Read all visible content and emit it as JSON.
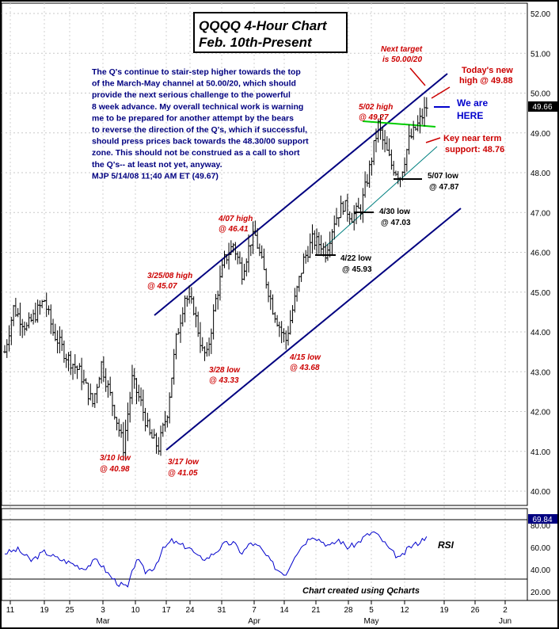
{
  "chart_data": [
    {
      "type": "candlestick",
      "title": "QQQQ 4-Hour Chart",
      "subtitle": "Feb. 10th-Present",
      "ylim": [
        39.5,
        52.2
      ],
      "y_ticks": [
        "52.00",
        "51.00",
        "50.00",
        "49.00",
        "48.00",
        "47.00",
        "46.00",
        "45.00",
        "44.00",
        "43.00",
        "42.00",
        "41.00",
        "40.00"
      ],
      "last_price_label": "49.66",
      "last_price": 49.66,
      "x_ticks": [
        "11",
        "19",
        "25",
        "3",
        "10",
        "17",
        "24",
        "31",
        "7",
        "14",
        "21",
        "28",
        "5",
        "12",
        "19",
        "26",
        "2"
      ],
      "month_labels": [
        "Mar",
        "Apr",
        "May",
        "Jun"
      ],
      "grid": true,
      "path_keypoints": [
        {
          "t": 0,
          "price": 43.5
        },
        {
          "t": 2,
          "price": 44.6
        },
        {
          "t": 5,
          "price": 44.1
        },
        {
          "t": 9,
          "price": 44.8
        },
        {
          "t": 11,
          "price": 44.0
        },
        {
          "t": 14,
          "price": 43.4
        },
        {
          "t": 17,
          "price": 43.0
        },
        {
          "t": 20,
          "price": 42.2
        },
        {
          "t": 22,
          "price": 43.2
        },
        {
          "t": 25,
          "price": 42.0
        },
        {
          "t": 27,
          "price": 41.1
        },
        {
          "t": 29,
          "price": 42.8
        },
        {
          "t": 31,
          "price": 42.2
        },
        {
          "t": 33,
          "price": 41.4
        },
        {
          "t": 35,
          "price": 41.1
        },
        {
          "t": 37,
          "price": 42.0
        },
        {
          "t": 39,
          "price": 43.8
        },
        {
          "t": 41,
          "price": 44.9
        },
        {
          "t": 43,
          "price": 44.6
        },
        {
          "t": 45,
          "price": 43.5
        },
        {
          "t": 46,
          "price": 43.4
        },
        {
          "t": 48,
          "price": 44.8
        },
        {
          "t": 50,
          "price": 45.8
        },
        {
          "t": 52,
          "price": 46.2
        },
        {
          "t": 54,
          "price": 45.5
        },
        {
          "t": 56,
          "price": 46.3
        },
        {
          "t": 57,
          "price": 46.4
        },
        {
          "t": 59,
          "price": 45.5
        },
        {
          "t": 61,
          "price": 44.6
        },
        {
          "t": 63,
          "price": 44.0
        },
        {
          "t": 64,
          "price": 43.8
        },
        {
          "t": 66,
          "price": 44.8
        },
        {
          "t": 68,
          "price": 45.8
        },
        {
          "t": 70,
          "price": 46.3
        },
        {
          "t": 72,
          "price": 46.2
        },
        {
          "t": 73,
          "price": 46.0
        },
        {
          "t": 75,
          "price": 46.8
        },
        {
          "t": 77,
          "price": 47.2
        },
        {
          "t": 79,
          "price": 46.9
        },
        {
          "t": 81,
          "price": 47.1
        },
        {
          "t": 83,
          "price": 48.1
        },
        {
          "t": 85,
          "price": 49.2
        },
        {
          "t": 86,
          "price": 48.8
        },
        {
          "t": 88,
          "price": 48.2
        },
        {
          "t": 90,
          "price": 47.9
        },
        {
          "t": 92,
          "price": 48.8
        },
        {
          "t": 94,
          "price": 49.2
        },
        {
          "t": 96,
          "price": 49.66
        }
      ],
      "rsi": {
        "label": "RSI",
        "value_label": "69.84",
        "value": 69.84,
        "ylim": [
          15,
          90
        ],
        "y_ticks": [
          "80.00",
          "60.00",
          "40.00",
          "20.00"
        ],
        "levels": [
          70,
          30
        ],
        "keypoints": [
          {
            "t": 0,
            "v": 55
          },
          {
            "t": 3,
            "v": 58
          },
          {
            "t": 6,
            "v": 48
          },
          {
            "t": 9,
            "v": 56
          },
          {
            "t": 12,
            "v": 50
          },
          {
            "t": 15,
            "v": 46
          },
          {
            "t": 18,
            "v": 41
          },
          {
            "t": 21,
            "v": 49
          },
          {
            "t": 24,
            "v": 34
          },
          {
            "t": 26,
            "v": 27
          },
          {
            "t": 28,
            "v": 24
          },
          {
            "t": 30,
            "v": 50
          },
          {
            "t": 32,
            "v": 38
          },
          {
            "t": 34,
            "v": 42
          },
          {
            "t": 36,
            "v": 58
          },
          {
            "t": 38,
            "v": 66
          },
          {
            "t": 40,
            "v": 62
          },
          {
            "t": 42,
            "v": 60
          },
          {
            "t": 44,
            "v": 51
          },
          {
            "t": 46,
            "v": 50
          },
          {
            "t": 48,
            "v": 56
          },
          {
            "t": 50,
            "v": 63
          },
          {
            "t": 52,
            "v": 64
          },
          {
            "t": 54,
            "v": 55
          },
          {
            "t": 56,
            "v": 64
          },
          {
            "t": 58,
            "v": 60
          },
          {
            "t": 60,
            "v": 50
          },
          {
            "t": 62,
            "v": 40
          },
          {
            "t": 64,
            "v": 36
          },
          {
            "t": 66,
            "v": 53
          },
          {
            "t": 68,
            "v": 63
          },
          {
            "t": 70,
            "v": 71
          },
          {
            "t": 72,
            "v": 66
          },
          {
            "t": 74,
            "v": 61
          },
          {
            "t": 76,
            "v": 67
          },
          {
            "t": 78,
            "v": 60
          },
          {
            "t": 80,
            "v": 63
          },
          {
            "t": 82,
            "v": 70
          },
          {
            "t": 84,
            "v": 74
          },
          {
            "t": 86,
            "v": 66
          },
          {
            "t": 88,
            "v": 56
          },
          {
            "t": 90,
            "v": 50
          },
          {
            "t": 92,
            "v": 60
          },
          {
            "t": 94,
            "v": 64
          },
          {
            "t": 96,
            "v": 69.84
          }
        ]
      }
    }
  ],
  "commentary": [
    "The Q's continue to stair-step higher towards the top",
    "of the March-May channel at 50.00/20, which should",
    "provide the next serious challenge to the powerful",
    "8 week advance.  My overall technical work is warning",
    "me to be prepared for another attempt by the bears",
    "to reverse the direction of the Q's, which if successful,",
    "should press prices back towards the 48.30/00 support",
    "zone. This should not be construed as a call to short",
    "the Q's-- at least not yet, anyway.",
    "MJP  5/14/08  11;40 AM ET  (49.67)"
  ],
  "annotations": {
    "next_target": [
      "Next target",
      "is 50.00/20"
    ],
    "todays_high": [
      "Today's new",
      "high @ 49.88"
    ],
    "we_are_here": [
      "We are",
      "HERE"
    ],
    "key_support": [
      "Key near term",
      "support: 48.76"
    ],
    "may02_high": [
      "5/02 high",
      "@ 49.27"
    ],
    "may07_low": [
      "5/07 low",
      "@ 47.87"
    ],
    "apr30_low": [
      "4/30 low",
      "@ 47.03"
    ],
    "apr22_low": [
      "4/22 low",
      "@ 45.93"
    ],
    "apr07_high": [
      "4/07 high",
      "@ 46.41"
    ],
    "mar25_high": [
      "3/25/08 high",
      "@ 45.07"
    ],
    "mar28_low": [
      "3/28 low",
      "@ 43.33"
    ],
    "apr15_low": [
      "4/15 low",
      "@ 43.68"
    ],
    "mar10_low": [
      "3/10 low",
      "@ 40.98"
    ],
    "mar17_low": [
      "3/17 low",
      "@ 41.05"
    ]
  },
  "footer_note": "Chart created using Qcharts",
  "colors": {
    "channel": "#000080",
    "price_bars": "#000000",
    "rsi_line": "#0000cc",
    "annotation_red": "#cc0000",
    "commentary_blue": "#000080",
    "resistance_green": "#00cc00",
    "support_teal": "#008080",
    "price_flag_bg": "#000000",
    "rsi_flag_bg": "#000080"
  }
}
